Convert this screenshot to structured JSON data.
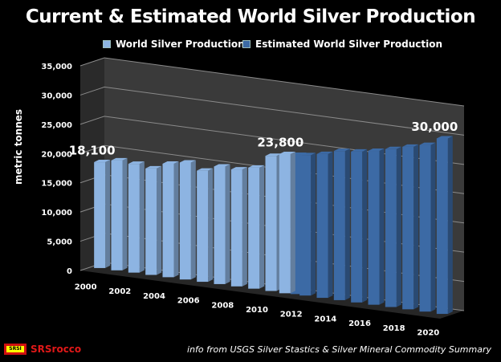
{
  "chart_data": {
    "type": "bar",
    "style": "3d-clustered-column",
    "title": "Current & Estimated World Silver Production",
    "ylabel": "metric tonnes",
    "xlabel": "",
    "ylim": [
      0,
      35000
    ],
    "yticks": [
      "0",
      "5,000",
      "10,000",
      "15,000",
      "20,000",
      "25,000",
      "30,000",
      "35,000"
    ],
    "ytick_values": [
      0,
      5000,
      10000,
      15000,
      20000,
      25000,
      30000,
      35000
    ],
    "xtick_labels": [
      "2000",
      "2002",
      "2004",
      "2006",
      "2008",
      "2010",
      "2012",
      "2014",
      "2016",
      "2018",
      "2020"
    ],
    "categories": [
      "2000",
      "2001",
      "2002",
      "2003",
      "2004",
      "2005",
      "2006",
      "2007",
      "2008",
      "2009",
      "2010",
      "2011",
      "2012",
      "2013",
      "2014",
      "2015",
      "2016",
      "2017",
      "2018",
      "2019",
      "2020"
    ],
    "grid": true,
    "legend_position": "top",
    "series": [
      {
        "name": "World Silver Production",
        "color": "#8db4e2",
        "values": [
          18100,
          18800,
          18600,
          18200,
          19400,
          20000,
          19000,
          20100,
          20000,
          20700,
          23100,
          23800,
          null,
          null,
          null,
          null,
          null,
          null,
          null,
          null,
          null
        ]
      },
      {
        "name": "Estimated World Silver Production",
        "color": "#3c6aa5",
        "values": [
          null,
          null,
          null,
          null,
          null,
          null,
          null,
          null,
          null,
          null,
          null,
          23800,
          24000,
          24600,
          25500,
          25800,
          26300,
          27000,
          27800,
          28500,
          30000
        ]
      }
    ],
    "annotations": [
      {
        "text": "18,100",
        "category": "2000"
      },
      {
        "text": "23,800",
        "category": "2011"
      },
      {
        "text": "30,000",
        "category": "2020"
      }
    ]
  },
  "footer": {
    "logo_badge": "SRSI",
    "logo_text": "SRSrocco",
    "source": "info from USGS Silver Stastics & Silver Mineral Commodity Summary"
  }
}
